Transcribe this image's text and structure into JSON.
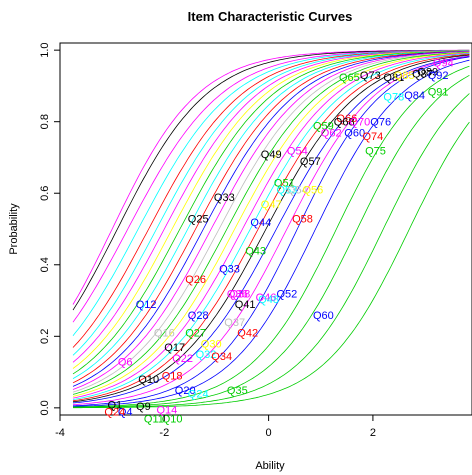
{
  "chart_data": {
    "type": "line",
    "title": "Item Characteristic Curves",
    "xlabel": "Ability",
    "ylabel": "Probability",
    "xlim": [
      -4,
      3.9
    ],
    "ylim": [
      -0.02,
      1.02
    ],
    "xticks": [
      -4,
      -2,
      0,
      2
    ],
    "yticks": [
      0.0,
      0.2,
      0.4,
      0.6,
      0.8,
      1.0
    ],
    "colors": [
      "#000000",
      "#ff0000",
      "#00cd00",
      "#0000ff",
      "#00ffff",
      "#ff00ff",
      "#ffff00",
      "#bebebe"
    ],
    "series": [
      {
        "name": "Q1",
        "b": -2.5,
        "label_x": -2.95,
        "label_y": 0.01,
        "color": "#000000"
      },
      {
        "name": "Q4",
        "b": 0.6,
        "label_x": -2.75,
        "label_y": -0.01,
        "color": "#0000ff"
      },
      {
        "name": "Q9",
        "b": -0.2,
        "label_x": -2.4,
        "label_y": 0.005,
        "color": "#000000"
      },
      {
        "name": "Q14",
        "b": 0.3,
        "label_x": -1.95,
        "label_y": -0.005,
        "color": "#ff00ff"
      },
      {
        "name": "Q11",
        "b": 2.3,
        "label_x": -2.2,
        "label_y": -0.03,
        "color": "#00cd00"
      },
      {
        "name": "Q10",
        "b": 2.5,
        "label_x": -1.85,
        "label_y": -0.03,
        "color": "#00cd00"
      },
      {
        "name": "Q24",
        "b": -0.6,
        "label_x": -2.95,
        "label_y": -0.01,
        "color": "#ff0000"
      },
      {
        "name": "Q6",
        "b": -0.3,
        "label_x": -2.75,
        "label_y": 0.13,
        "color": "#ff00ff"
      },
      {
        "name": "Q10",
        "b": -0.1,
        "label_x": -2.3,
        "label_y": 0.08,
        "color": "#000000"
      },
      {
        "name": "Q18",
        "b": 0.0,
        "label_x": -1.85,
        "label_y": 0.09,
        "color": "#ff0000"
      },
      {
        "name": "Q20",
        "b": 0.2,
        "label_x": -1.6,
        "label_y": 0.05,
        "color": "#0000ff"
      },
      {
        "name": "Q24",
        "b": 0.5,
        "label_x": -1.35,
        "label_y": 0.04,
        "color": "#00ffff"
      },
      {
        "name": "Q35",
        "b": 1.5,
        "label_x": -0.6,
        "label_y": 0.05,
        "color": "#00cd00"
      },
      {
        "name": "Q12",
        "b": -2.0,
        "label_x": -2.35,
        "label_y": 0.29,
        "color": "#0000ff"
      },
      {
        "name": "Q16",
        "b": -0.7,
        "label_x": -2.0,
        "label_y": 0.21,
        "color": "#bebebe"
      },
      {
        "name": "Q17",
        "b": -0.5,
        "label_x": -1.8,
        "label_y": 0.17,
        "color": "#000000"
      },
      {
        "name": "Q22",
        "b": -0.4,
        "label_x": -1.65,
        "label_y": 0.14,
        "color": "#ff00ff"
      },
      {
        "name": "Q27",
        "b": -0.3,
        "label_x": -1.4,
        "label_y": 0.21,
        "color": "#00cd00"
      },
      {
        "name": "Q28",
        "b": -0.5,
        "label_x": -1.35,
        "label_y": 0.26,
        "color": "#0000ff"
      },
      {
        "name": "Q26",
        "b": -1.2,
        "label_x": -1.4,
        "label_y": 0.36,
        "color": "#ff0000"
      },
      {
        "name": "Q30",
        "b": -0.2,
        "label_x": -1.1,
        "label_y": 0.18,
        "color": "#ffff00"
      },
      {
        "name": "Q32",
        "b": -0.1,
        "label_x": -1.2,
        "label_y": 0.15,
        "color": "#00ffff"
      },
      {
        "name": "Q34",
        "b": 0.1,
        "label_x": -0.9,
        "label_y": 0.145,
        "color": "#ff0000"
      },
      {
        "name": "Q33",
        "b": -0.3,
        "label_x": -0.75,
        "label_y": 0.39,
        "color": "#0000ff"
      },
      {
        "name": "Q36",
        "b": -0.4,
        "label_x": -0.6,
        "label_y": 0.32,
        "color": "#ff00ff"
      },
      {
        "name": "Q37",
        "b": -0.2,
        "label_x": -0.65,
        "label_y": 0.24,
        "color": "#bebebe"
      },
      {
        "name": "Q38",
        "b": 0.0,
        "label_x": -0.55,
        "label_y": 0.32,
        "color": "#ff00ff"
      },
      {
        "name": "Q41",
        "b": 0.2,
        "label_x": -0.45,
        "label_y": 0.29,
        "color": "#000000"
      },
      {
        "name": "Q42",
        "b": 0.5,
        "label_x": -0.4,
        "label_y": 0.21,
        "color": "#ff0000"
      },
      {
        "name": "Q43",
        "b": -0.1,
        "label_x": -0.25,
        "label_y": 0.44,
        "color": "#00cd00"
      },
      {
        "name": "Q25",
        "b": -1.8,
        "label_x": -1.35,
        "label_y": 0.53,
        "color": "#000000"
      },
      {
        "name": "Q33",
        "b": -1.1,
        "label_x": -0.85,
        "label_y": 0.59,
        "color": "#000000"
      },
      {
        "name": "Q44",
        "b": -0.2,
        "label_x": -0.15,
        "label_y": 0.52,
        "color": "#0000ff"
      },
      {
        "name": "Q46",
        "b": 0.3,
        "label_x": -0.05,
        "label_y": 0.31,
        "color": "#ff00ff"
      },
      {
        "name": "Q48",
        "b": 0.4,
        "label_x": 0.0,
        "label_y": 0.305,
        "color": "#00ffff"
      },
      {
        "name": "Q52",
        "b": 0.8,
        "label_x": 0.35,
        "label_y": 0.32,
        "color": "#0000ff"
      },
      {
        "name": "Q60",
        "b": 1.3,
        "label_x": 1.05,
        "label_y": 0.26,
        "color": "#0000ff"
      },
      {
        "name": "Q58",
        "b": 0.5,
        "label_x": 0.65,
        "label_y": 0.53,
        "color": "#ff0000"
      },
      {
        "name": "Q47",
        "b": 0.0,
        "label_x": 0.05,
        "label_y": 0.57,
        "color": "#ffff00"
      },
      {
        "name": "Q51",
        "b": -0.1,
        "label_x": 0.3,
        "label_y": 0.63,
        "color": "#00cd00"
      },
      {
        "name": "Q53",
        "b": 0.1,
        "label_x": 0.35,
        "label_y": 0.61,
        "color": "#00ffff"
      },
      {
        "name": "Q54",
        "b": 0.2,
        "label_x": 0.55,
        "label_y": 0.61,
        "color": "#bebebe"
      },
      {
        "name": "Q56",
        "b": 0.3,
        "label_x": 0.85,
        "label_y": 0.61,
        "color": "#ffff00"
      },
      {
        "name": "Q49",
        "b": -0.6,
        "label_x": 0.05,
        "label_y": 0.71,
        "color": "#000000"
      },
      {
        "name": "Q54",
        "b": -0.4,
        "label_x": 0.55,
        "label_y": 0.72,
        "color": "#ff00ff"
      },
      {
        "name": "Q57",
        "b": -0.3,
        "label_x": 0.8,
        "label_y": 0.69,
        "color": "#000000"
      },
      {
        "name": "Q59",
        "b": -0.5,
        "label_x": 1.05,
        "label_y": 0.79,
        "color": "#00cd00"
      },
      {
        "name": "Q62",
        "b": -0.2,
        "label_x": 1.2,
        "label_y": 0.77,
        "color": "#ff00ff"
      },
      {
        "name": "Q66",
        "b": -0.4,
        "label_x": 1.5,
        "label_y": 0.81,
        "color": "#ff0000"
      },
      {
        "name": "Q68",
        "b": -0.3,
        "label_x": 1.45,
        "label_y": 0.8,
        "color": "#000000"
      },
      {
        "name": "Q70",
        "b": -0.2,
        "label_x": 1.75,
        "label_y": 0.8,
        "color": "#ff00ff"
      },
      {
        "name": "Q60",
        "b": -0.1,
        "label_x": 1.65,
        "label_y": 0.77,
        "color": "#0000ff"
      },
      {
        "name": "Q74",
        "b": 0.2,
        "label_x": 2.0,
        "label_y": 0.76,
        "color": "#ff0000"
      },
      {
        "name": "Q76",
        "b": 0.1,
        "label_x": 2.15,
        "label_y": 0.8,
        "color": "#0000ff"
      },
      {
        "name": "Q75",
        "b": 0.6,
        "label_x": 2.05,
        "label_y": 0.72,
        "color": "#00cd00"
      },
      {
        "name": "Q65",
        "b": -1.0,
        "label_x": 1.55,
        "label_y": 0.925,
        "color": "#00cd00"
      },
      {
        "name": "Q73",
        "b": -0.9,
        "label_x": 1.95,
        "label_y": 0.93,
        "color": "#000000"
      },
      {
        "name": "Q81",
        "b": -0.7,
        "label_x": 2.4,
        "label_y": 0.925,
        "color": "#000000"
      },
      {
        "name": "Q85",
        "b": -0.8,
        "label_x": 2.6,
        "label_y": 0.93,
        "color": "#ffff00"
      },
      {
        "name": "Q87",
        "b": -0.6,
        "label_x": 2.95,
        "label_y": 0.935,
        "color": "#000000"
      },
      {
        "name": "Q89",
        "b": -0.5,
        "label_x": 3.05,
        "label_y": 0.94,
        "color": "#000000"
      },
      {
        "name": "Q92",
        "b": -0.4,
        "label_x": 3.25,
        "label_y": 0.93,
        "color": "#0000ff"
      },
      {
        "name": "Q94",
        "b": -0.3,
        "label_x": 3.35,
        "label_y": 0.965,
        "color": "#ff00ff"
      },
      {
        "name": "Q78",
        "b": -0.2,
        "label_x": 2.4,
        "label_y": 0.87,
        "color": "#00ffff"
      },
      {
        "name": "Q84",
        "b": 0.0,
        "label_x": 2.8,
        "label_y": 0.875,
        "color": "#0000ff"
      },
      {
        "name": "Q91",
        "b": 0.3,
        "label_x": 3.25,
        "label_y": 0.885,
        "color": "#00cd00"
      }
    ],
    "curve_params": [
      {
        "b": -3.0,
        "a": 1.2,
        "color": "#ff00ff"
      },
      {
        "b": -2.9,
        "a": 1.15,
        "color": "#000000"
      },
      {
        "b": -2.7,
        "a": 1.1,
        "color": "#ff00ff"
      },
      {
        "b": -2.5,
        "a": 1.1,
        "color": "#00ffff"
      },
      {
        "b": -2.3,
        "a": 1.1,
        "color": "#ff0000"
      },
      {
        "b": -2.15,
        "a": 1.1,
        "color": "#00ffff"
      },
      {
        "b": -2.0,
        "a": 1.1,
        "color": "#ff00ff"
      },
      {
        "b": -1.85,
        "a": 1.1,
        "color": "#ffff00"
      },
      {
        "b": -1.7,
        "a": 1.1,
        "color": "#00cd00"
      },
      {
        "b": -1.55,
        "a": 1.1,
        "color": "#00ffff"
      },
      {
        "b": -1.4,
        "a": 1.1,
        "color": "#ff0000"
      },
      {
        "b": -1.25,
        "a": 1.1,
        "color": "#0000ff"
      },
      {
        "b": -1.1,
        "a": 1.1,
        "color": "#ff00ff"
      },
      {
        "b": -0.95,
        "a": 1.1,
        "color": "#bebebe"
      },
      {
        "b": -0.8,
        "a": 1.1,
        "color": "#00cd00"
      },
      {
        "b": -0.65,
        "a": 1.1,
        "color": "#ffff00"
      },
      {
        "b": -0.5,
        "a": 1.1,
        "color": "#ff00ff"
      },
      {
        "b": -0.35,
        "a": 1.1,
        "color": "#00ffff"
      },
      {
        "b": -0.2,
        "a": 1.1,
        "color": "#ff0000"
      },
      {
        "b": -0.05,
        "a": 1.1,
        "color": "#000000"
      },
      {
        "b": 0.15,
        "a": 1.1,
        "color": "#0000ff"
      },
      {
        "b": 0.35,
        "a": 1.15,
        "color": "#ff00ff"
      },
      {
        "b": 0.55,
        "a": 1.2,
        "color": "#0000ff"
      },
      {
        "b": 0.9,
        "a": 1.2,
        "color": "#0000ff"
      },
      {
        "b": 1.3,
        "a": 1.2,
        "color": "#00cd00"
      },
      {
        "b": 1.7,
        "a": 1.2,
        "color": "#00cd00"
      },
      {
        "b": 2.2,
        "a": 1.2,
        "color": "#00cd00"
      },
      {
        "b": 2.7,
        "a": 1.2,
        "color": "#00cd00"
      }
    ]
  }
}
